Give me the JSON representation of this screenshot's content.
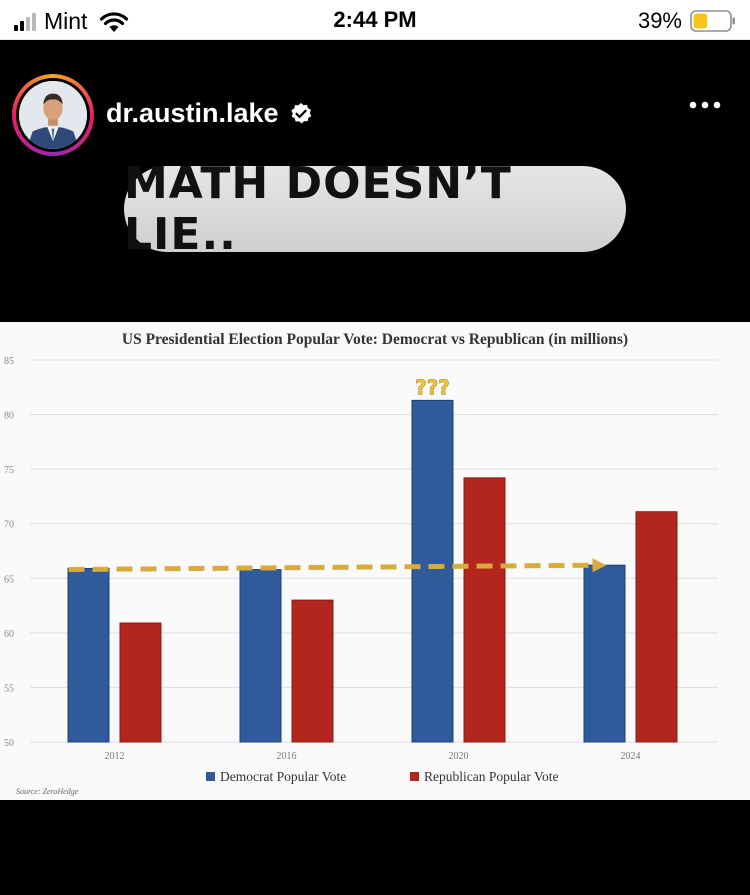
{
  "status_bar": {
    "carrier": "Mint",
    "time": "2:44 PM",
    "battery_percent": "39%",
    "battery_level": 0.39,
    "signal_bars_active": 2,
    "signal_bars_total": 4,
    "battery_color": "#f5c518"
  },
  "story": {
    "username": "dr.austin.lake",
    "verified": true,
    "caption": "MATH DOESN’T LIE.."
  },
  "icons": [
    "signal-icon",
    "wifi-icon",
    "battery-icon",
    "avatar-icon",
    "verified-icon",
    "more-icon",
    "arrow-icon"
  ],
  "chart_data": {
    "type": "bar",
    "title": "US Presidential Election Popular Vote: Democrat vs Republican (in millions)",
    "categories": [
      "2012",
      "2016",
      "2020",
      "2024"
    ],
    "series": [
      {
        "name": "Democrat Popular Vote",
        "color": "#2f5b9c",
        "values": [
          65.9,
          65.8,
          81.3,
          66.2
        ]
      },
      {
        "name": "Republican Popular Vote",
        "color": "#b3261e",
        "values": [
          60.9,
          63.0,
          74.2,
          71.1
        ]
      }
    ],
    "ylim": [
      50,
      85
    ],
    "yticks": [
      50,
      55,
      60,
      65,
      70,
      75,
      80,
      85
    ],
    "grid": true,
    "legend": "bottom",
    "annotation": "???",
    "trend_line": {
      "from": 65.8,
      "to": 66.2,
      "color": "#d9ab3c"
    },
    "source": "Source: ZeroHedge"
  }
}
